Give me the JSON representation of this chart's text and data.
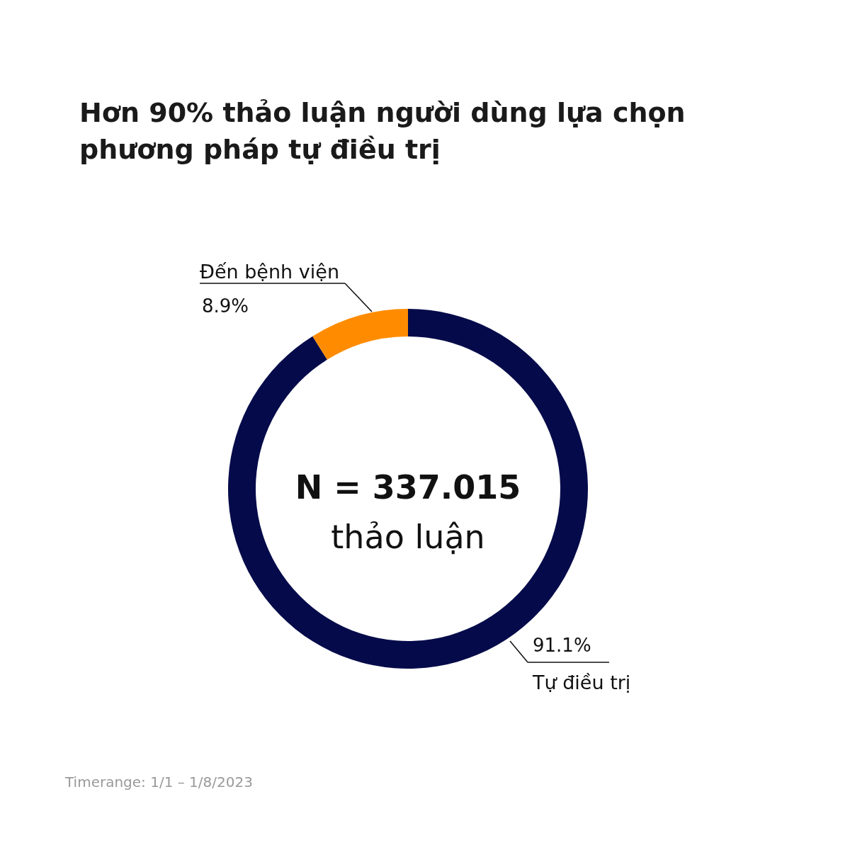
{
  "chart_data": {
    "type": "donut",
    "title": "Hơn 90% thảo luận người dùng lựa chọn phương pháp tự điều trị",
    "categories": [
      "Tự điều trị",
      "Đến bệnh viện"
    ],
    "values": [
      91.1,
      8.9
    ],
    "colors": [
      "#050b4a",
      "#ff8c00"
    ],
    "value_labels": [
      "91.1%",
      "8.9%"
    ],
    "annotations": [
      "N = 337.015",
      "thảo luận",
      "Timerange: 1/1 – 1/8/2023"
    ]
  }
}
